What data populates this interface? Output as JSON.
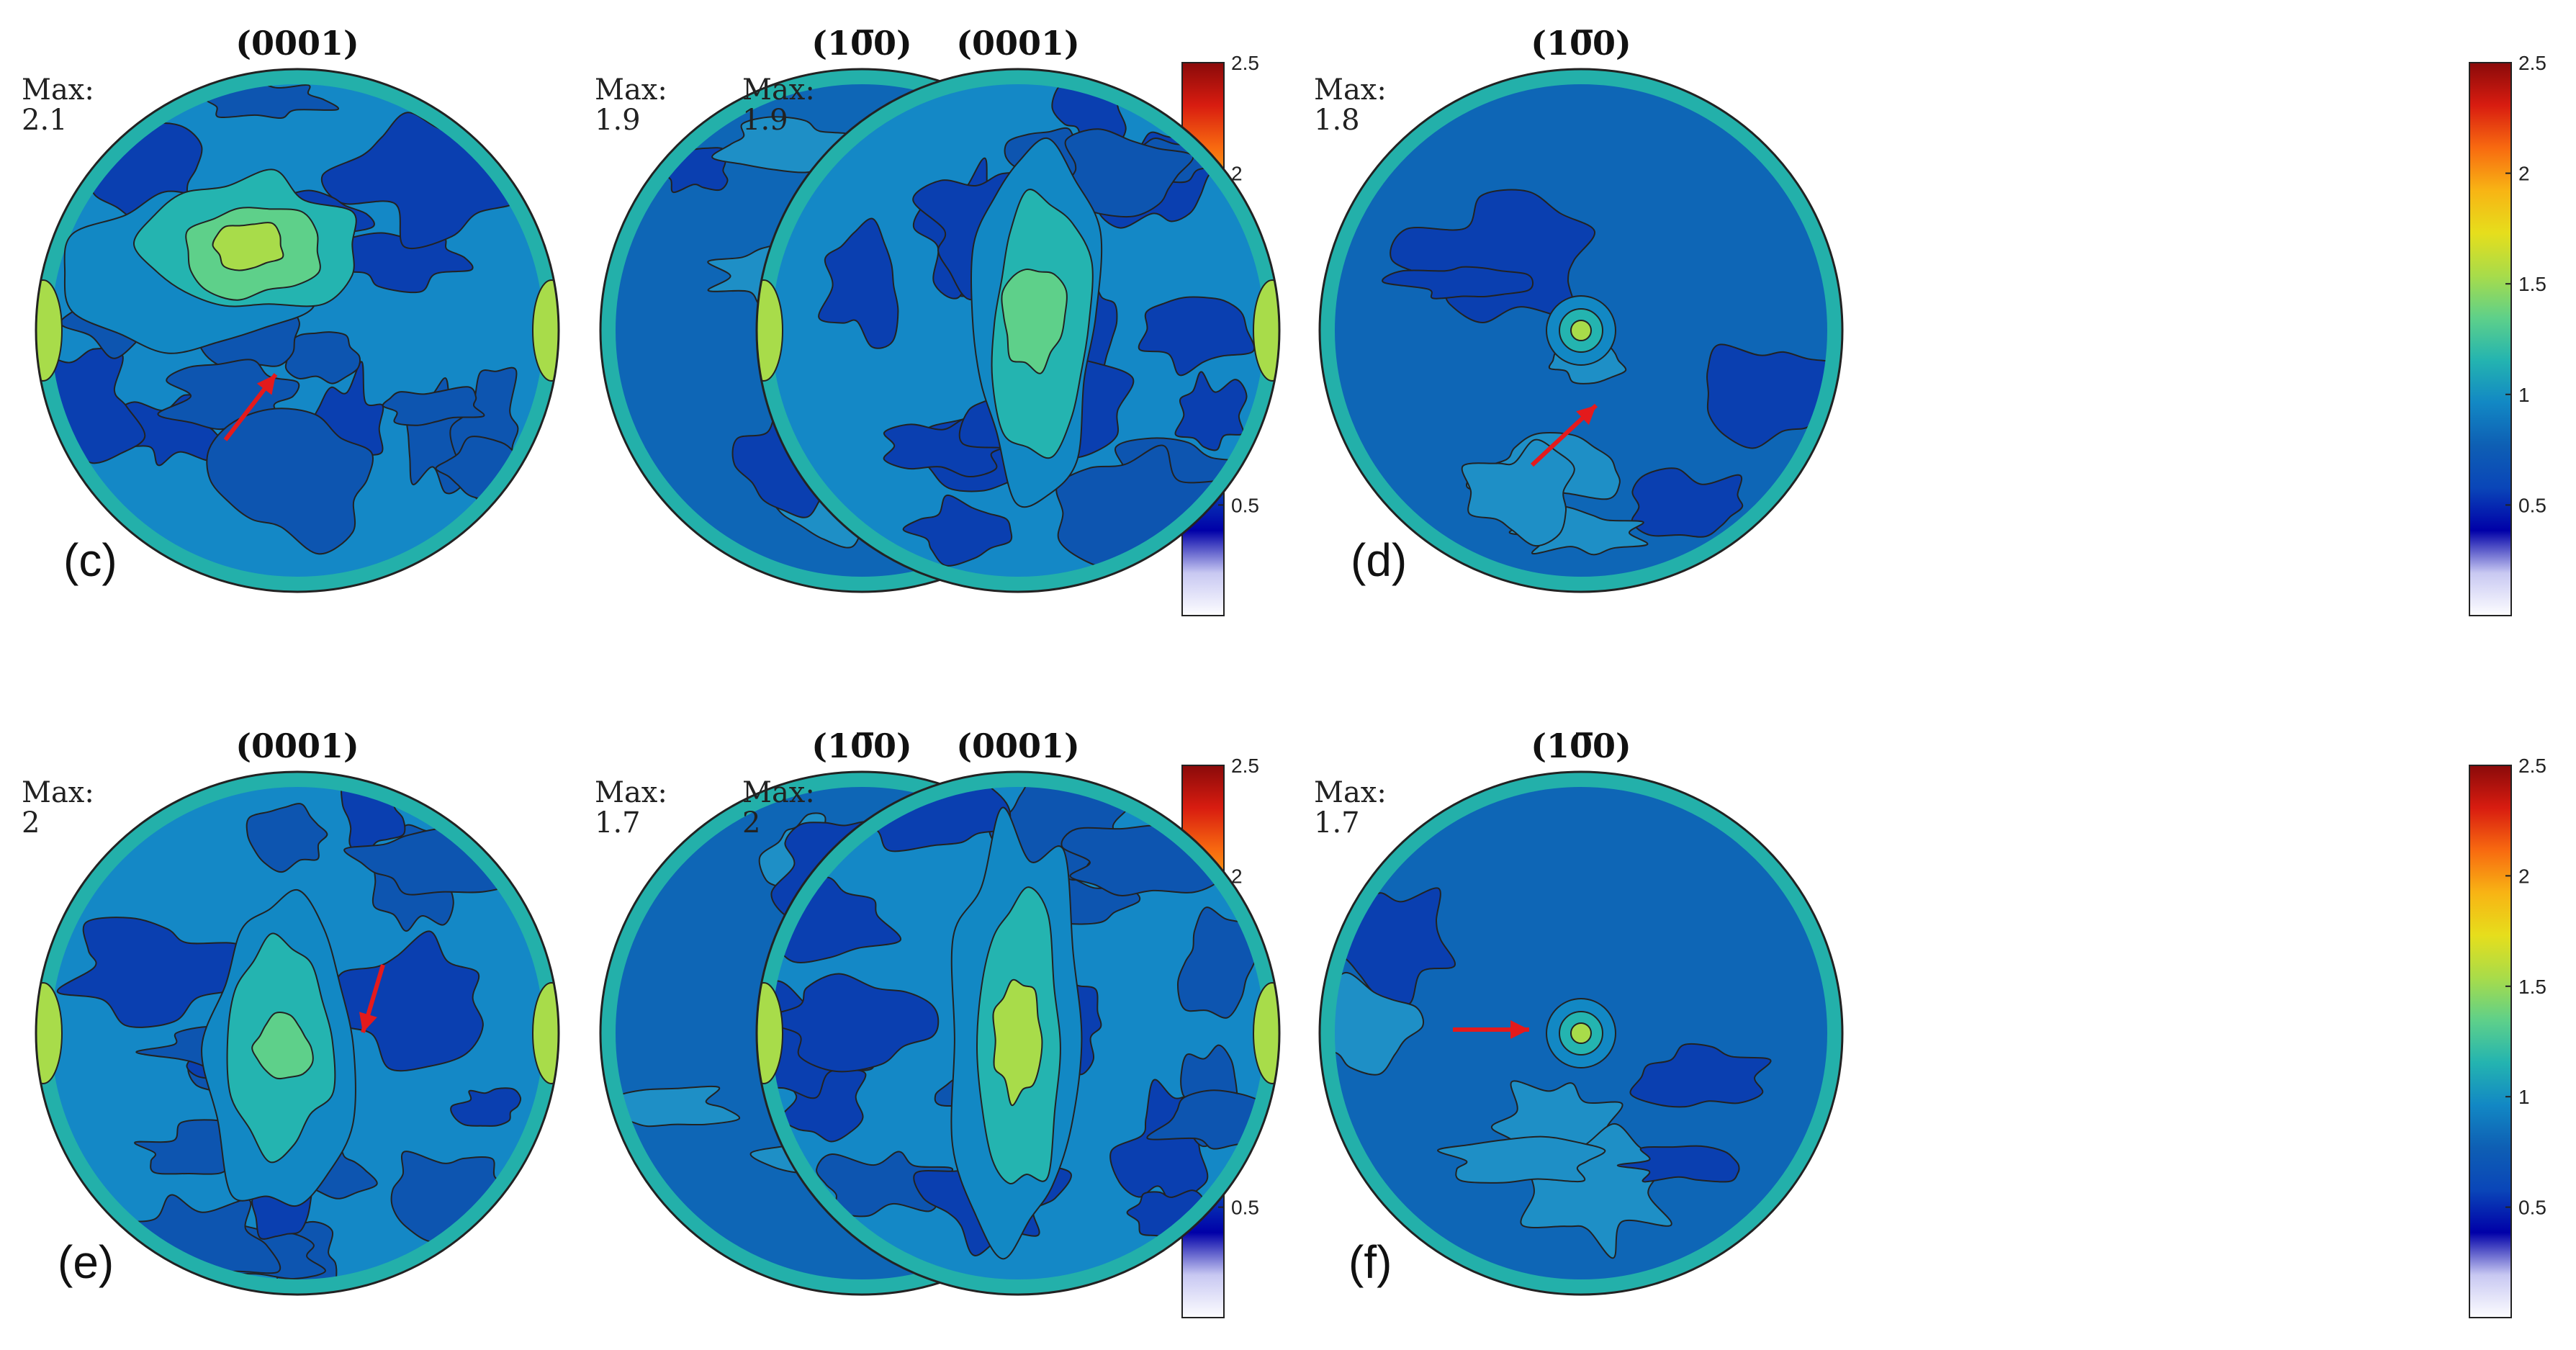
{
  "colors": {
    "scale": [
      "#fdfdff",
      "#c8c8f2",
      "#0000a8",
      "#0a46b8",
      "#0e5fb4",
      "#1288c4",
      "#24b4b0",
      "#5ed08a",
      "#a8dc4a",
      "#e6de1c",
      "#f8b414",
      "#f86a10",
      "#d81c10",
      "#8a0a0a"
    ],
    "outline": "#222222",
    "arrow": "#e41a1c"
  },
  "chart_data": [
    {
      "type": "pole-figure-set",
      "panel_label": "(c)",
      "figures": [
        {
          "title": "(0001)",
          "max_label": "Max:",
          "max_value": "2.1"
        },
        {
          "title": "(10̅0)",
          "max_label": "Max:",
          "max_value": "1.9"
        }
      ],
      "colorbar": {
        "ticks": [
          "2.5",
          "2",
          "1.5",
          "1",
          "0.5"
        ],
        "tick_values": [
          2.5,
          2,
          1.5,
          1,
          0.5
        ],
        "range": [
          0,
          2.5
        ]
      },
      "arrow_direction": "up-right"
    },
    {
      "type": "pole-figure-set",
      "panel_label": "(d)",
      "figures": [
        {
          "title": "(0001)",
          "max_label": "Max:",
          "max_value": "1.9"
        },
        {
          "title": "(10̅0)",
          "max_label": "Max:",
          "max_value": "1.8"
        }
      ],
      "colorbar": {
        "ticks": [
          "2.5",
          "2",
          "1.5",
          "1",
          "0.5"
        ],
        "tick_values": [
          2.5,
          2,
          1.5,
          1,
          0.5
        ],
        "range": [
          0,
          2.5
        ]
      },
      "arrow_direction": "up-right"
    },
    {
      "type": "pole-figure-set",
      "panel_label": "(e)",
      "figures": [
        {
          "title": "(0001)",
          "max_label": "Max:",
          "max_value": "2"
        },
        {
          "title": "(10̅0)",
          "max_label": "Max:",
          "max_value": "1.7"
        }
      ],
      "colorbar": {
        "ticks": [
          "2.5",
          "2",
          "1.5",
          "1",
          "0.5"
        ],
        "tick_values": [
          2.5,
          2,
          1.5,
          1,
          0.5
        ],
        "range": [
          0,
          2.5
        ]
      },
      "arrow_direction": "down-left"
    },
    {
      "type": "pole-figure-set",
      "panel_label": "(f)",
      "figures": [
        {
          "title": "(0001)",
          "max_label": "Max:",
          "max_value": "2"
        },
        {
          "title": "(10̅0)",
          "max_label": "Max:",
          "max_value": "1.7"
        }
      ],
      "colorbar": {
        "ticks": [
          "2.5",
          "2",
          "1.5",
          "1",
          "0.5"
        ],
        "tick_values": [
          2.5,
          2,
          1.5,
          1,
          0.5
        ],
        "range": [
          0,
          2.5
        ]
      },
      "arrow_direction": "right"
    }
  ]
}
